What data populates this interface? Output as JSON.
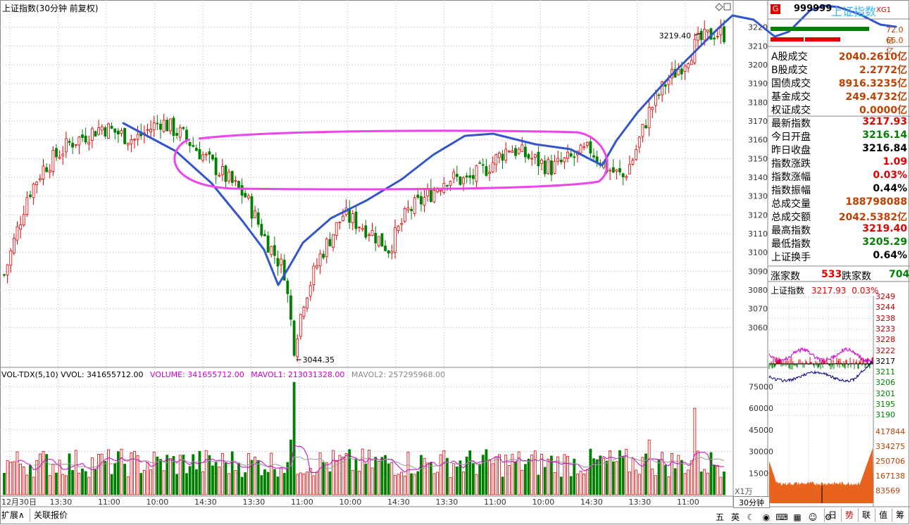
{
  "window": {
    "title": "上证指数(30分钟 前复权)"
  },
  "chart_data": {
    "type": "candlestick",
    "title": "上证指数(30分钟 前复权)",
    "y_ticks": [
      3220,
      3210,
      3200,
      3190,
      3180,
      3170,
      3160,
      3150,
      3140,
      3130,
      3120,
      3110,
      3100,
      3090,
      3080,
      3070,
      3060
    ],
    "ylim": [
      3047,
      3227
    ],
    "x_ticks": [
      "12月30日",
      "13:30",
      "11:00",
      "10:00",
      "14:30",
      "13:30",
      "11:00",
      "10:00",
      "14:30",
      "13:30",
      "11:00",
      "10:00",
      "14:30",
      "13:30",
      "11:00"
    ],
    "annotations": {
      "high_label": "3219.40",
      "low_label": "3044.35"
    },
    "segments": [
      [
        0,
        3088
      ],
      [
        7,
        3130
      ],
      [
        12,
        3145
      ],
      [
        20,
        3158
      ],
      [
        30,
        3167
      ],
      [
        40,
        3160
      ],
      [
        48,
        3170
      ],
      [
        55,
        3162
      ],
      [
        62,
        3150
      ],
      [
        68,
        3140
      ],
      [
        74,
        3130
      ],
      [
        80,
        3108
      ],
      [
        86,
        3090
      ],
      [
        89,
        3050
      ],
      [
        92,
        3075
      ],
      [
        97,
        3098
      ],
      [
        104,
        3120
      ],
      [
        112,
        3112
      ],
      [
        118,
        3102
      ],
      [
        124,
        3122
      ],
      [
        130,
        3130
      ],
      [
        136,
        3140
      ],
      [
        142,
        3138
      ],
      [
        148,
        3145
      ],
      [
        155,
        3156
      ],
      [
        162,
        3150
      ],
      [
        168,
        3145
      ],
      [
        174,
        3150
      ],
      [
        180,
        3155
      ],
      [
        185,
        3145
      ],
      [
        190,
        3140
      ],
      [
        193,
        3150
      ],
      [
        198,
        3175
      ],
      [
        203,
        3190
      ],
      [
        208,
        3200
      ],
      [
        213,
        3212
      ],
      [
        218,
        3217
      ],
      [
        222,
        3216
      ]
    ],
    "volume": {
      "header": "VOL-TDX(5,10)  VVOL: 341655712.00",
      "volume_label": "VOLUME: 341655712.00",
      "mavol1_label": "MAVOL1: 213031328.00",
      "mavol2_label": "MAVOL2: 257295968.00",
      "y_ticks": [
        75000,
        60000,
        45000,
        30000,
        15000
      ],
      "unit": "X1万",
      "ylim": [
        0,
        82000
      ]
    }
  },
  "period_tab": "30分钟",
  "right_panel": {
    "code": "999999",
    "name": "上证指数",
    "flag": "XG1",
    "bar_top_value": "72.0亿",
    "bar_bottom_value": "66.0亿",
    "rows": [
      {
        "label": "A股成交",
        "value": "2040.2610亿",
        "color": "#c04000"
      },
      {
        "label": "B股成交",
        "value": "2.2772亿",
        "color": "#c04000"
      },
      {
        "label": "国债成交",
        "value": "8916.3235亿",
        "color": "#c04000"
      },
      {
        "label": "基金成交",
        "value": "249.4732亿",
        "color": "#c04000"
      },
      {
        "label": "权证成交",
        "value": "0.0000亿",
        "color": "#c04000"
      },
      {
        "label": "最新指数",
        "value": "3217.93",
        "color": "#e00000"
      },
      {
        "label": "今日开盘",
        "value": "3216.14",
        "color": "#008000"
      },
      {
        "label": "昨日收盘",
        "value": "3216.84",
        "color": "#000000"
      },
      {
        "label": "指数涨跌",
        "value": "1.09",
        "color": "#e00000"
      },
      {
        "label": "指数涨幅",
        "value": "0.03%",
        "color": "#e00000"
      },
      {
        "label": "指数振幅",
        "value": "0.44%",
        "color": "#000000"
      },
      {
        "label": "总成交量",
        "value": "188798088",
        "color": "#c04000"
      },
      {
        "label": "总成交额",
        "value": "2042.5382亿",
        "color": "#c04000"
      },
      {
        "label": "最高指数",
        "value": "3219.40",
        "color": "#e00000"
      },
      {
        "label": "最低指数",
        "value": "3205.29",
        "color": "#008000"
      },
      {
        "label": "上证换手",
        "value": "0.64%",
        "color": "#000000"
      }
    ],
    "advance_label": "涨家数",
    "advance_value": "533",
    "decline_label": "跌家数",
    "decline_value": "704",
    "mini_header_name": "上证指数",
    "mini_header_price": "3217.93",
    "mini_header_pct": "0.03%",
    "mini_price_ticks": [
      "3249",
      "3244",
      "3238",
      "3233",
      "3228",
      "3222",
      "3217",
      "3211",
      "3206",
      "3201",
      "3195",
      "3190"
    ],
    "mini_vol_ticks": [
      "417844",
      "334275",
      "250706",
      "167138",
      "83569"
    ]
  },
  "bottom_tabs": [
    "扩展∧",
    "关联报价"
  ],
  "toolbar_buttons": [
    "五",
    "英",
    "☾",
    "◉",
    "⌨",
    "▦",
    "☺",
    "⚙"
  ],
  "right_tabs": [
    "日",
    "势",
    "联",
    "值",
    "筹"
  ],
  "colors": {
    "up": "#e00000",
    "down": "#008000",
    "ma": "#cc00cc",
    "annotation_blue": "#3355cc",
    "annotation_magenta": "#ee44ee"
  }
}
